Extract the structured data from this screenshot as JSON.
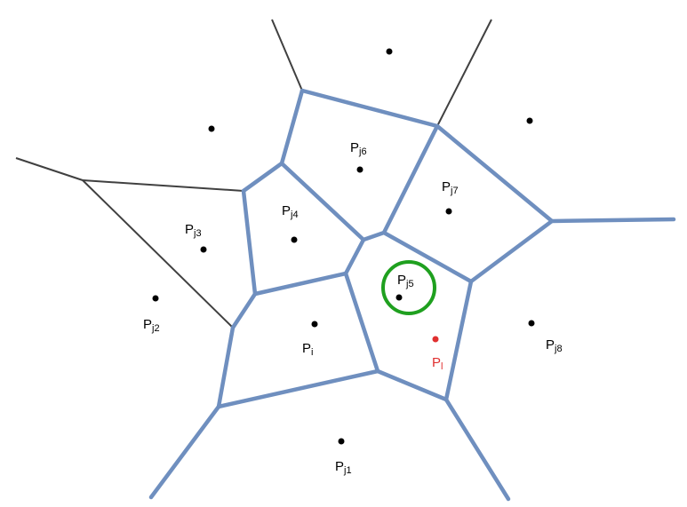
{
  "colors": {
    "thin_edge": "#404040",
    "thick_edge": "#6F8FBF",
    "circle": "#1FA01F",
    "point": "#000000",
    "highlight_point": "#E03030"
  },
  "points": [
    {
      "id": "pi",
      "main": "P",
      "sub": "i"
    },
    {
      "id": "pl",
      "main": "P",
      "sub": "l",
      "highlight": true
    },
    {
      "id": "pj1",
      "main": "P",
      "sub": "j1"
    },
    {
      "id": "pj2",
      "main": "P",
      "sub": "j2"
    },
    {
      "id": "pj3",
      "main": "P",
      "sub": "j3"
    },
    {
      "id": "pj4",
      "main": "P",
      "sub": "j4"
    },
    {
      "id": "pj5",
      "main": "P",
      "sub": "j5",
      "circled": true
    },
    {
      "id": "pj6",
      "main": "P",
      "sub": "j6"
    },
    {
      "id": "pj7",
      "main": "P",
      "sub": "j7"
    },
    {
      "id": "pj8",
      "main": "P",
      "sub": "j8"
    },
    {
      "id": "top",
      "main": "",
      "sub": ""
    },
    {
      "id": "upper-left",
      "main": "",
      "sub": ""
    },
    {
      "id": "upper-right",
      "main": "",
      "sub": ""
    }
  ]
}
